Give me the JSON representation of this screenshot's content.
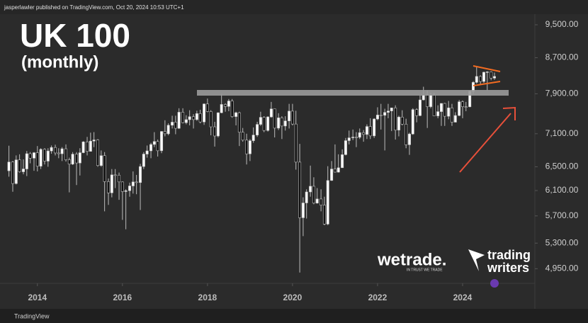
{
  "header": "jasperlawler published on TradingView.com, Oct 20, 2024 10:53 UTC+1",
  "footer": "TradingView",
  "logos": {
    "wetrade": "wetrade.",
    "wetrade_tagline": "IN TRUST WE TRADE",
    "tw_line1": "trading",
    "tw_line2": "writers"
  },
  "chart_data": {
    "type": "candlestick",
    "title": "UK 100",
    "subtitle": "(monthly)",
    "log": true,
    "up_color": "#ffffff",
    "down_color": "#111111",
    "wick_color": "#bdbdbd",
    "xlim": [
      2013.12,
      2025.7
    ],
    "xticks": [
      2014,
      2016,
      2018,
      2020,
      2022,
      2024
    ],
    "ylim": [
      4760,
      10150
    ],
    "yticks": [
      {
        "value": 4950,
        "label": "4,950.00"
      },
      {
        "value": 5300,
        "label": "5,300.00"
      },
      {
        "value": 5700,
        "label": "5,700.00"
      },
      {
        "value": 6100,
        "label": "6,100.00"
      },
      {
        "value": 6500,
        "label": "6,500.00"
      },
      {
        "value": 7100,
        "label": "7,100.00"
      },
      {
        "value": 7900,
        "label": "7,900.00"
      },
      {
        "value": 8700,
        "label": "8,700.00"
      },
      {
        "value": 9500,
        "label": "9,500.00"
      }
    ],
    "x": [
      2013.33,
      2013.42,
      2013.5,
      2013.58,
      2013.67,
      2013.75,
      2013.83,
      2013.92,
      2014,
      2014.08,
      2014.17,
      2014.25,
      2014.33,
      2014.42,
      2014.5,
      2014.58,
      2014.67,
      2014.75,
      2014.83,
      2014.92,
      2015,
      2015.08,
      2015.17,
      2015.25,
      2015.33,
      2015.42,
      2015.5,
      2015.58,
      2015.67,
      2015.75,
      2015.83,
      2015.92,
      2016,
      2016.08,
      2016.17,
      2016.25,
      2016.33,
      2016.42,
      2016.5,
      2016.58,
      2016.67,
      2016.75,
      2016.83,
      2016.92,
      2017,
      2017.08,
      2017.17,
      2017.25,
      2017.33,
      2017.42,
      2017.5,
      2017.58,
      2017.67,
      2017.75,
      2017.83,
      2017.92,
      2018,
      2018.08,
      2018.17,
      2018.25,
      2018.33,
      2018.42,
      2018.5,
      2018.58,
      2018.67,
      2018.75,
      2018.83,
      2018.92,
      2019,
      2019.08,
      2019.17,
      2019.25,
      2019.33,
      2019.42,
      2019.5,
      2019.58,
      2019.67,
      2019.75,
      2019.83,
      2019.92,
      2020,
      2020.08,
      2020.17,
      2020.25,
      2020.33,
      2020.42,
      2020.5,
      2020.58,
      2020.67,
      2020.75,
      2020.83,
      2020.92,
      2021,
      2021.08,
      2021.17,
      2021.25,
      2021.33,
      2021.42,
      2021.5,
      2021.58,
      2021.67,
      2021.75,
      2021.83,
      2021.92,
      2022,
      2022.08,
      2022.17,
      2022.25,
      2022.33,
      2022.42,
      2022.5,
      2022.58,
      2022.67,
      2022.75,
      2022.83,
      2022.92,
      2023,
      2023.08,
      2023.17,
      2023.25,
      2023.33,
      2023.42,
      2023.5,
      2023.58,
      2023.67,
      2023.75,
      2023.83,
      2023.92,
      2024,
      2024.08,
      2024.17,
      2024.25,
      2024.33,
      2024.42,
      2024.5,
      2024.58,
      2024.67,
      2024.75
    ],
    "open": [
      6430,
      6583,
      6215,
      6621,
      6413,
      6462,
      6731,
      6651,
      6749,
      6510,
      6810,
      6598,
      6780,
      6844,
      6744,
      6730,
      6820,
      6622,
      6546,
      6723,
      6566,
      6749,
      6947,
      6773,
      6961,
      6984,
      6521,
      6696,
      6248,
      6062,
      6361,
      6356,
      6242,
      6083,
      6097,
      6175,
      6242,
      6231,
      6504,
      6724,
      6782,
      6899,
      6954,
      6784,
      7143,
      7099,
      7263,
      7323,
      7204,
      7520,
      7313,
      7372,
      7431,
      7373,
      7493,
      7327,
      7688,
      7534,
      7232,
      7057,
      7509,
      7678,
      7637,
      7749,
      7432,
      7510,
      7128,
      6980,
      6728,
      6969,
      7075,
      7279,
      7418,
      7162,
      7426,
      7587,
      7207,
      7408,
      7248,
      7347,
      7542,
      7286,
      6581,
      5672,
      5901,
      6077,
      6170,
      5898,
      5964,
      5866,
      5577,
      6266,
      6461,
      6407,
      6483,
      6714,
      6970,
      7023,
      7037,
      7032,
      7120,
      7086,
      7238,
      7059,
      7385,
      7464,
      7458,
      7516,
      7545,
      7608,
      7169,
      7423,
      7284,
      6894,
      7095,
      7573,
      7452,
      7772,
      7876,
      7632,
      7871,
      7446,
      7532,
      7699,
      7439,
      7608,
      7322,
      7454,
      7733,
      7631,
      7630,
      7953,
      8144,
      8275,
      8164,
      8368,
      8377,
      8237
    ],
    "high": [
      6876,
      6600,
      6700,
      6720,
      6630,
      6780,
      6760,
      6760,
      6870,
      6830,
      6830,
      6830,
      6880,
      6895,
      6830,
      6850,
      6900,
      6660,
      6760,
      6760,
      6830,
      6960,
      7040,
      7120,
      7130,
      7000,
      6790,
      6760,
      6300,
      6460,
      6460,
      6400,
      6250,
      6120,
      6230,
      6420,
      6360,
      6550,
      6760,
      6880,
      6930,
      7130,
      6990,
      7150,
      7360,
      7300,
      7450,
      7450,
      7600,
      7600,
      7460,
      7560,
      7480,
      7550,
      7570,
      7700,
      7800,
      7560,
      7330,
      7520,
      7900,
      7700,
      7790,
      7790,
      7530,
      7530,
      7210,
      7100,
      7000,
      7220,
      7330,
      7530,
      7440,
      7440,
      7730,
      7590,
      7500,
      7440,
      7440,
      7690,
      7690,
      7550,
      6910,
      5990,
      6120,
      6520,
      6320,
      6140,
      6120,
      6000,
      6510,
      6600,
      6900,
      6720,
      6810,
      7020,
      7160,
      7180,
      7130,
      7200,
      7170,
      7280,
      7400,
      7400,
      7620,
      7690,
      7590,
      7690,
      7610,
      7660,
      7450,
      7560,
      7390,
      7120,
      7600,
      7600,
      7870,
      8050,
      7970,
      7920,
      7920,
      7660,
      7700,
      7710,
      7750,
      7690,
      7520,
      7770,
      7760,
      7730,
      7970,
      8170,
      8480,
      8300,
      8380,
      8390,
      8390,
      8360
    ],
    "low": [
      6330,
      6080,
      6200,
      6400,
      6370,
      6340,
      6560,
      6430,
      6420,
      6460,
      6540,
      6500,
      6730,
      6700,
      6650,
      6600,
      6590,
      6070,
      6530,
      6190,
      6350,
      6740,
      6700,
      6770,
      6850,
      6500,
      6500,
      5770,
      5870,
      5990,
      6140,
      5950,
      5640,
      5500,
      6000,
      6050,
      6040,
      5790,
      6460,
      6660,
      6650,
      6850,
      6680,
      6740,
      7050,
      7070,
      7200,
      7090,
      7190,
      7300,
      7280,
      7260,
      7200,
      7350,
      7300,
      7270,
      7520,
      7070,
      6860,
      7030,
      7500,
      7530,
      7540,
      7410,
      7260,
      6870,
      6950,
      6540,
      6600,
      6930,
      7040,
      7250,
      7130,
      7140,
      7410,
      7030,
      7170,
      7000,
      7160,
      7200,
      7260,
      6450,
      4900,
      5400,
      5660,
      6000,
      5880,
      5890,
      5770,
      5560,
      5560,
      6260,
      6400,
      6400,
      6480,
      6700,
      6900,
      6980,
      6850,
      7000,
      6950,
      7000,
      7000,
      7020,
      7360,
      7180,
      6790,
      7400,
      7150,
      6990,
      7050,
      7260,
      6830,
      6710,
      7080,
      7320,
      7440,
      7760,
      7210,
      7600,
      7440,
      7400,
      7250,
      7250,
      7380,
      7250,
      7320,
      7440,
      7400,
      7540,
      7620,
      7900,
      8120,
      8110,
      8130,
      7970,
      8190,
      8200
    ],
    "close": [
      6583,
      6215,
      6621,
      6413,
      6462,
      6731,
      6651,
      6749,
      6510,
      6810,
      6598,
      6780,
      6844,
      6744,
      6730,
      6820,
      6622,
      6546,
      6723,
      6566,
      6749,
      6947,
      6773,
      6961,
      6984,
      6521,
      6696,
      6248,
      6062,
      6361,
      6356,
      6242,
      6083,
      6097,
      6175,
      6242,
      6231,
      6504,
      6724,
      6782,
      6899,
      6954,
      6784,
      7143,
      7099,
      7263,
      7323,
      7204,
      7520,
      7313,
      7372,
      7431,
      7373,
      7493,
      7327,
      7688,
      7534,
      7232,
      7057,
      7509,
      7678,
      7637,
      7749,
      7432,
      7510,
      7128,
      6980,
      6728,
      6969,
      7075,
      7279,
      7418,
      7162,
      7426,
      7587,
      7207,
      7408,
      7248,
      7347,
      7542,
      7286,
      6581,
      5672,
      5901,
      6077,
      6170,
      5898,
      5964,
      5866,
      5577,
      6266,
      6461,
      6407,
      6483,
      6714,
      6970,
      7023,
      7037,
      7032,
      7120,
      7086,
      7238,
      7059,
      7385,
      7464,
      7458,
      7516,
      7545,
      7608,
      7169,
      7423,
      7284,
      6894,
      7095,
      7573,
      7452,
      7772,
      7876,
      7632,
      7871,
      7446,
      7532,
      7699,
      7439,
      7608,
      7322,
      7454,
      7733,
      7631,
      7630,
      7953,
      8144,
      8275,
      8164,
      8368,
      8377,
      8237,
      8275
    ]
  }
}
